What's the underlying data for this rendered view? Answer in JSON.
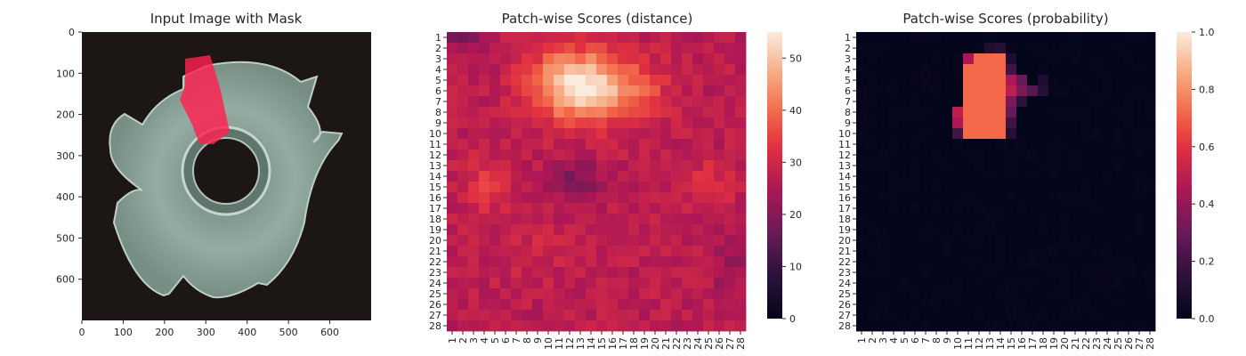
{
  "chart_data": [
    {
      "type": "image",
      "title": "Input Image with Mask",
      "xticks": [
        "0",
        "100",
        "200",
        "300",
        "400",
        "500",
        "600"
      ],
      "yticks": [
        "0",
        "100",
        "200",
        "300",
        "400",
        "500",
        "600"
      ],
      "xlim": [
        0,
        700
      ],
      "ylim": [
        700,
        0
      ],
      "mask_color": "#ff2050",
      "background_color": "#1c1614",
      "object_color": "#8fa89e"
    },
    {
      "type": "heatmap",
      "title": "Patch-wise Scores (distance)",
      "rows": [
        "1",
        "2",
        "3",
        "4",
        "5",
        "6",
        "7",
        "8",
        "9",
        "10",
        "11",
        "12",
        "13",
        "14",
        "15",
        "16",
        "17",
        "18",
        "19",
        "20",
        "21",
        "22",
        "23",
        "24",
        "25",
        "26",
        "27",
        "28"
      ],
      "cols": [
        "1",
        "2",
        "3",
        "4",
        "5",
        "6",
        "7",
        "8",
        "9",
        "10",
        "11",
        "12",
        "13",
        "14",
        "15",
        "16",
        "17",
        "18",
        "19",
        "20",
        "21",
        "22",
        "23",
        "24",
        "25",
        "26",
        "27",
        "28"
      ],
      "colorbar": {
        "min": 0,
        "max": 55,
        "ticks": [
          "0",
          "10",
          "20",
          "30",
          "40",
          "50"
        ],
        "tick_values": [
          0,
          10,
          20,
          30,
          40,
          50
        ],
        "colormap": "rocket"
      },
      "background_level": 27,
      "blobs": [
        {
          "row": 5.5,
          "col": 12.5,
          "sigma_row": 2.3,
          "sigma_col": 2.8,
          "peak": 27
        },
        {
          "row": 6.0,
          "col": 17.5,
          "sigma_row": 2.0,
          "sigma_col": 2.5,
          "peak": 11
        },
        {
          "row": 15.0,
          "col": 4.0,
          "sigma_row": 1.6,
          "sigma_col": 1.5,
          "peak": 7
        },
        {
          "row": 15.0,
          "col": 25.0,
          "sigma_row": 1.6,
          "sigma_col": 1.5,
          "peak": 6
        },
        {
          "row": 14.5,
          "col": 12.5,
          "sigma_row": 1.3,
          "sigma_col": 1.8,
          "peak": -8
        },
        {
          "row": 21.0,
          "col": 9.0,
          "sigma_row": 1.7,
          "sigma_col": 2.5,
          "peak": 3
        },
        {
          "row": 1.0,
          "col": 2.0,
          "sigma_row": 1.0,
          "sigma_col": 1.2,
          "peak": -9
        },
        {
          "row": 22.5,
          "col": 27.0,
          "sigma_row": 2.0,
          "sigma_col": 1.5,
          "peak": -4
        }
      ],
      "noise_amplitude": 3
    },
    {
      "type": "heatmap",
      "title": "Patch-wise Scores (probability)",
      "rows": [
        "1",
        "2",
        "3",
        "4",
        "5",
        "6",
        "7",
        "8",
        "9",
        "10",
        "11",
        "12",
        "13",
        "14",
        "15",
        "16",
        "17",
        "18",
        "19",
        "20",
        "21",
        "22",
        "23",
        "24",
        "25",
        "26",
        "27",
        "28"
      ],
      "cols": [
        "1",
        "2",
        "3",
        "4",
        "5",
        "6",
        "7",
        "8",
        "9",
        "10",
        "11",
        "12",
        "13",
        "14",
        "15",
        "16",
        "17",
        "18",
        "19",
        "20",
        "21",
        "22",
        "23",
        "24",
        "25",
        "26",
        "27",
        "28"
      ],
      "colorbar": {
        "min": 0,
        "max": 1,
        "ticks": [
          "0.0",
          "0.2",
          "0.4",
          "0.6",
          "0.8",
          "1.0"
        ],
        "tick_values": [
          0,
          0.2,
          0.4,
          0.6,
          0.8,
          1.0
        ],
        "colormap": "rocket"
      },
      "rect_value": 0.72,
      "rect_rows": [
        4,
        10
      ],
      "rect_cols": [
        11,
        14
      ],
      "rect_top_rows": [
        3,
        3
      ],
      "rect_top_cols": [
        12,
        14
      ],
      "halo": [
        {
          "row": 3,
          "col": 11,
          "value": 0.45
        },
        {
          "row": 4,
          "col": 11,
          "value": 0.55
        },
        {
          "row": 8,
          "col": 10,
          "value": 0.5
        },
        {
          "row": 9,
          "col": 10,
          "value": 0.45
        },
        {
          "row": 10,
          "col": 10,
          "value": 0.2
        },
        {
          "row": 5,
          "col": 15,
          "value": 0.45
        },
        {
          "row": 6,
          "col": 15,
          "value": 0.5
        },
        {
          "row": 7,
          "col": 15,
          "value": 0.35
        },
        {
          "row": 8,
          "col": 15,
          "value": 0.3
        },
        {
          "row": 9,
          "col": 15,
          "value": 0.2
        },
        {
          "row": 4,
          "col": 15,
          "value": 0.2
        },
        {
          "row": 5,
          "col": 16,
          "value": 0.3
        },
        {
          "row": 6,
          "col": 16,
          "value": 0.35
        },
        {
          "row": 6,
          "col": 17,
          "value": 0.25
        },
        {
          "row": 7,
          "col": 16,
          "value": 0.15
        },
        {
          "row": 3,
          "col": 15,
          "value": 0.1
        },
        {
          "row": 2,
          "col": 13,
          "value": 0.1
        },
        {
          "row": 2,
          "col": 14,
          "value": 0.12
        },
        {
          "row": 5,
          "col": 18,
          "value": 0.1
        },
        {
          "row": 6,
          "col": 18,
          "value": 0.12
        },
        {
          "row": 10,
          "col": 14,
          "value": 0.35
        },
        {
          "row": 10,
          "col": 15,
          "value": 0.12
        }
      ]
    }
  ]
}
